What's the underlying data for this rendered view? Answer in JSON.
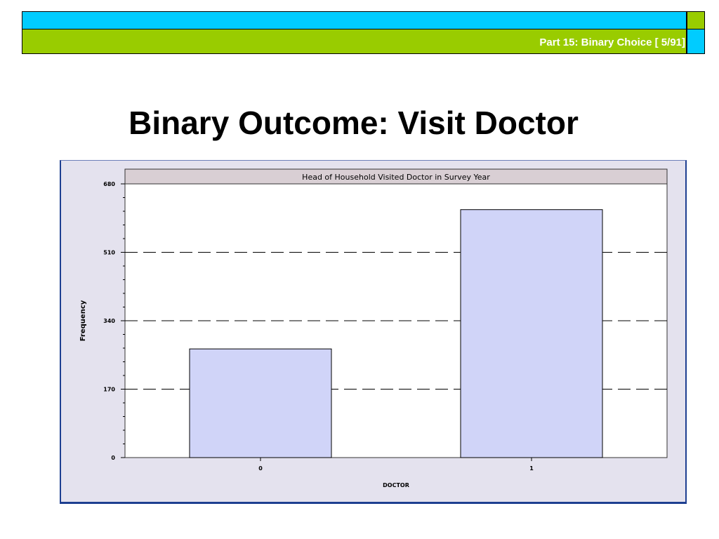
{
  "header": {
    "text": "Part 15: Binary Choice [ 5/91]",
    "colors": {
      "cyan": "#00ccff",
      "green": "#99cc00"
    }
  },
  "slide": {
    "title": "Binary Outcome: Visit Doctor"
  },
  "chart_data": {
    "type": "bar",
    "title": "Head of Household Visited Doctor in Survey Year",
    "xlabel": "DOCTOR",
    "ylabel": "Frequency",
    "categories": [
      "0",
      "1"
    ],
    "values": [
      270,
      616
    ],
    "ylim": [
      0,
      680
    ],
    "yticks": [
      0,
      170,
      340,
      510,
      680
    ],
    "ytick_labels": [
      "0",
      "170",
      "340",
      "510",
      "680"
    ],
    "gridlines": [
      170,
      340,
      510
    ],
    "grid_style": "dashed",
    "bar_fill": "#d0d4f8",
    "plot_background": "#ffffff",
    "frame_background": "#e4e2ee",
    "title_bar_color": "#d9cfd4"
  }
}
